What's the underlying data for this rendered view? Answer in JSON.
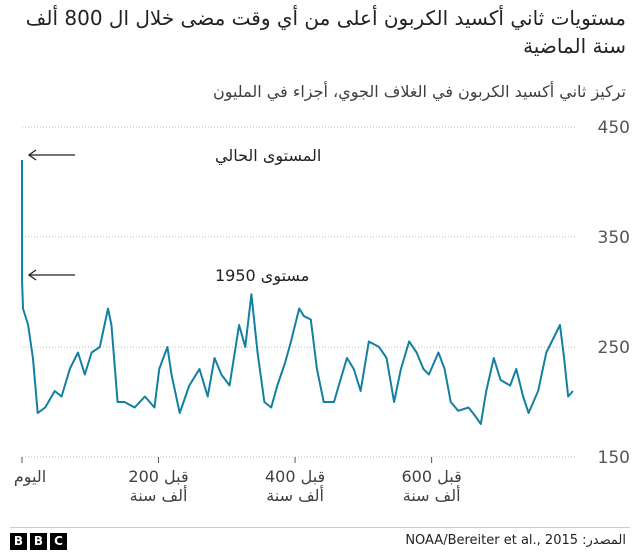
{
  "chart_data": {
    "type": "line",
    "title": "مستويات ثاني أكسيد الكربون أعلى من أي وقت مضى خلال ال 800 ألف سنة الماضية",
    "subtitle": "تركيز ثاني أكسيد الكربون في الغلاف الجوي، أجزاء في المليون",
    "annotations": [
      "المستوى الحالي",
      "مستوى 1950"
    ],
    "source": "المصدر: NOAA/Bereiter et al., 2015",
    "logo": [
      "B",
      "B",
      "C"
    ],
    "color": "#1380a1",
    "grid": true,
    "x": [
      0,
      0.1,
      1.5,
      9,
      16,
      23,
      34,
      48,
      58,
      70,
      82,
      92,
      102,
      114,
      126,
      131,
      140,
      150,
      165,
      180,
      194,
      201,
      213,
      219,
      231,
      245,
      260,
      272,
      282,
      292,
      304,
      318,
      327,
      336,
      345,
      355,
      365,
      374,
      385,
      394,
      406,
      413,
      423,
      432,
      442,
      457,
      464,
      476,
      486,
      496,
      508,
      523,
      534,
      545,
      555,
      567,
      578,
      588,
      596,
      610,
      619,
      628,
      639,
      654,
      663,
      672,
      680,
      691,
      701,
      715,
      724,
      734,
      742,
      756,
      768,
      780,
      788,
      794,
      800,
      807
    ],
    "values": [
      420,
      310,
      285,
      270,
      240,
      190,
      195,
      210,
      205,
      230,
      245,
      225,
      245,
      250,
      285,
      270,
      200,
      200,
      195,
      205,
      195,
      230,
      250,
      225,
      190,
      215,
      230,
      205,
      240,
      225,
      215,
      270,
      250,
      298,
      245,
      200,
      195,
      215,
      235,
      255,
      285,
      278,
      275,
      230,
      200,
      200,
      215,
      240,
      230,
      210,
      255,
      250,
      240,
      200,
      230,
      255,
      245,
      230,
      225,
      245,
      230,
      200,
      192,
      195,
      188,
      180,
      210,
      240,
      220,
      215,
      230,
      205,
      190,
      210,
      245,
      260,
      270,
      240,
      205,
      210
    ],
    "xlim": [
      0,
      810
    ],
    "ylim": [
      150,
      450
    ],
    "xticks": [
      {
        "value": 0,
        "label": "اليوم"
      },
      {
        "value": 200,
        "label": "قبل 200 ألف سنة"
      },
      {
        "value": 400,
        "label": "قبل 400 ألف سنة"
      },
      {
        "value": 600,
        "label": "قبل 600 ألف سنة"
      }
    ],
    "yticks": [
      150,
      250,
      350,
      450
    ]
  }
}
